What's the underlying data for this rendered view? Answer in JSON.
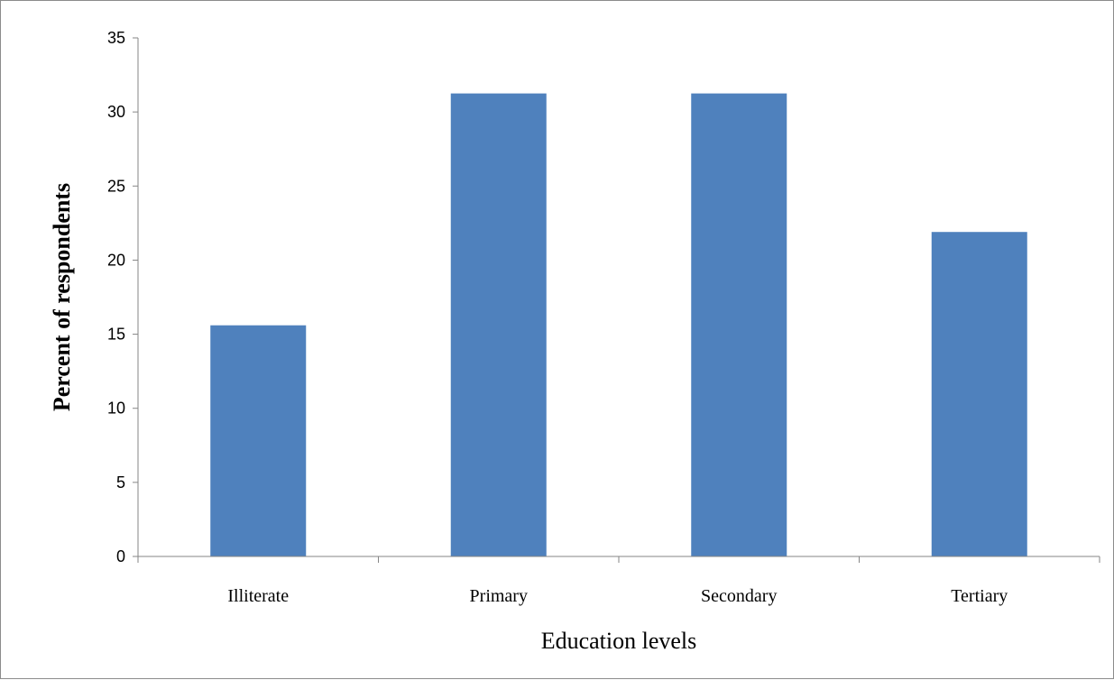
{
  "chart_data": {
    "type": "bar",
    "categories": [
      "Illiterate",
      "Primary",
      "Secondary",
      "Tertiary"
    ],
    "values": [
      15.6,
      31.25,
      31.25,
      21.9
    ],
    "xlabel": "Education levels",
    "ylabel": "Percent of respondents",
    "ylim": [
      0,
      35
    ],
    "yticks": [
      "0",
      "5",
      "10",
      "15",
      "20",
      "25",
      "30",
      "35"
    ],
    "grid": false,
    "legend": "none",
    "bar_color": "#4f81bd"
  }
}
